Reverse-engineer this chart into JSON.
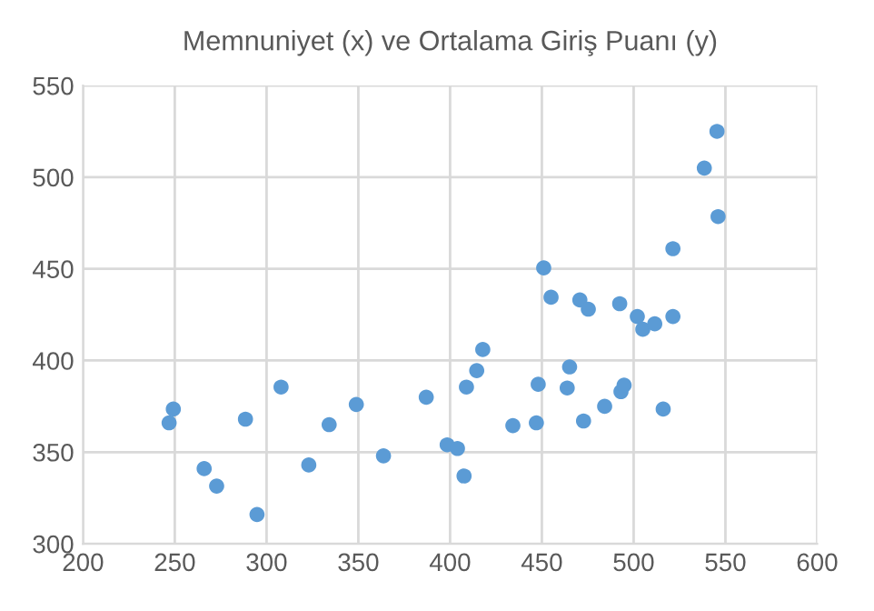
{
  "chart_data": {
    "type": "scatter",
    "title": "Memnuniyet (x) ve Ortalama Giriş Puanı (y)",
    "x": [
      246.9,
      249.2,
      266,
      272.8,
      288.5,
      294.8,
      307.9,
      323,
      334.1,
      348.9,
      363.7,
      387,
      398.4,
      404,
      407.6,
      408.9,
      414.5,
      417.8,
      434.2,
      447,
      448,
      451,
      455,
      463.8,
      465.1,
      470.7,
      472.7,
      475.3,
      484.2,
      492.4,
      493.1,
      494.8,
      502,
      505,
      511.5,
      516.1,
      521.4,
      521.4,
      538.5,
      545.4,
      546
    ],
    "series": [
      {
        "color": "#5b9bd5",
        "values": [
          366,
          373.5,
          341,
          331.5,
          368,
          316,
          385.5,
          343,
          365,
          376,
          348,
          380,
          354,
          352,
          337,
          385.5,
          394.5,
          406,
          364.5,
          366,
          387,
          450.5,
          434.5,
          385,
          396.5,
          433,
          367,
          428,
          375,
          431,
          383,
          386.5,
          424,
          417,
          420,
          373.5,
          461,
          424,
          505,
          525,
          478.5
        ]
      }
    ],
    "xlim": [
      200,
      600
    ],
    "xticks": [
      200,
      250,
      300,
      350,
      400,
      450,
      500,
      550,
      600
    ],
    "ylim": [
      300,
      550
    ],
    "yticks": [
      300,
      350,
      400,
      450,
      500,
      550
    ],
    "grid": true,
    "marker": "circle"
  }
}
